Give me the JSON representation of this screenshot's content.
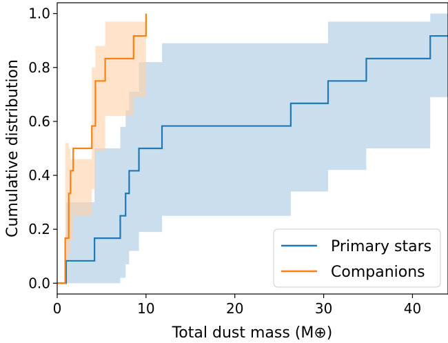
{
  "chart_data": {
    "type": "line",
    "title": "",
    "xlabel": "Total dust mass (M⊕)",
    "ylabel": "Cumulative distribution",
    "xlim": [
      0,
      44
    ],
    "ylim": [
      -0.04,
      1.04
    ],
    "xticks": [
      0,
      10,
      20,
      30,
      40
    ],
    "yticks": [
      0.0,
      0.2,
      0.4,
      0.6,
      0.8,
      1.0
    ],
    "xtick_labels": [
      "0",
      "10",
      "20",
      "30",
      "40"
    ],
    "ytick_labels": [
      "0.0",
      "0.2",
      "0.4",
      "0.6",
      "0.8",
      "1.0"
    ],
    "grid": false,
    "legend_position": "lower-right",
    "series": [
      {
        "name": "Primary stars",
        "color": "#1f77b4",
        "band_color": "#a6c8e2",
        "step_x": [
          0,
          1.0,
          4.2,
          7.1,
          7.7,
          8.1,
          9.2,
          11.8,
          26.3,
          30.5,
          34.8,
          42.0,
          44
        ],
        "step_y": [
          0.0,
          0.083,
          0.167,
          0.25,
          0.333,
          0.417,
          0.5,
          0.583,
          0.667,
          0.75,
          0.833,
          0.917,
          0.917
        ],
        "band_lower": [
          0.0,
          0.0,
          0.0,
          0.02,
          0.07,
          0.12,
          0.19,
          0.25,
          0.34,
          0.42,
          0.5,
          0.69,
          0.69
        ],
        "band_upper": [
          0.0,
          0.3,
          0.5,
          0.58,
          0.64,
          0.71,
          0.82,
          0.89,
          0.89,
          0.97,
          0.97,
          1.0,
          1.0
        ]
      },
      {
        "name": "Companions",
        "color": "#ff7f0e",
        "band_color": "#ffd0a8",
        "step_x": [
          0,
          0.9,
          1.3,
          1.5,
          1.8,
          3.9,
          4.3,
          5.4,
          8.6,
          10.0
        ],
        "step_y": [
          0.0,
          0.167,
          0.333,
          0.417,
          0.5,
          0.583,
          0.75,
          0.833,
          0.917,
          1.0
        ],
        "band_lower": [
          0.0,
          0.0,
          0.11,
          0.16,
          0.25,
          0.35,
          0.49,
          0.62,
          0.69,
          1.0
        ],
        "band_upper": [
          0.0,
          0.52,
          0.5,
          0.46,
          0.46,
          0.8,
          0.88,
          0.97,
          0.97,
          1.0
        ]
      }
    ]
  }
}
